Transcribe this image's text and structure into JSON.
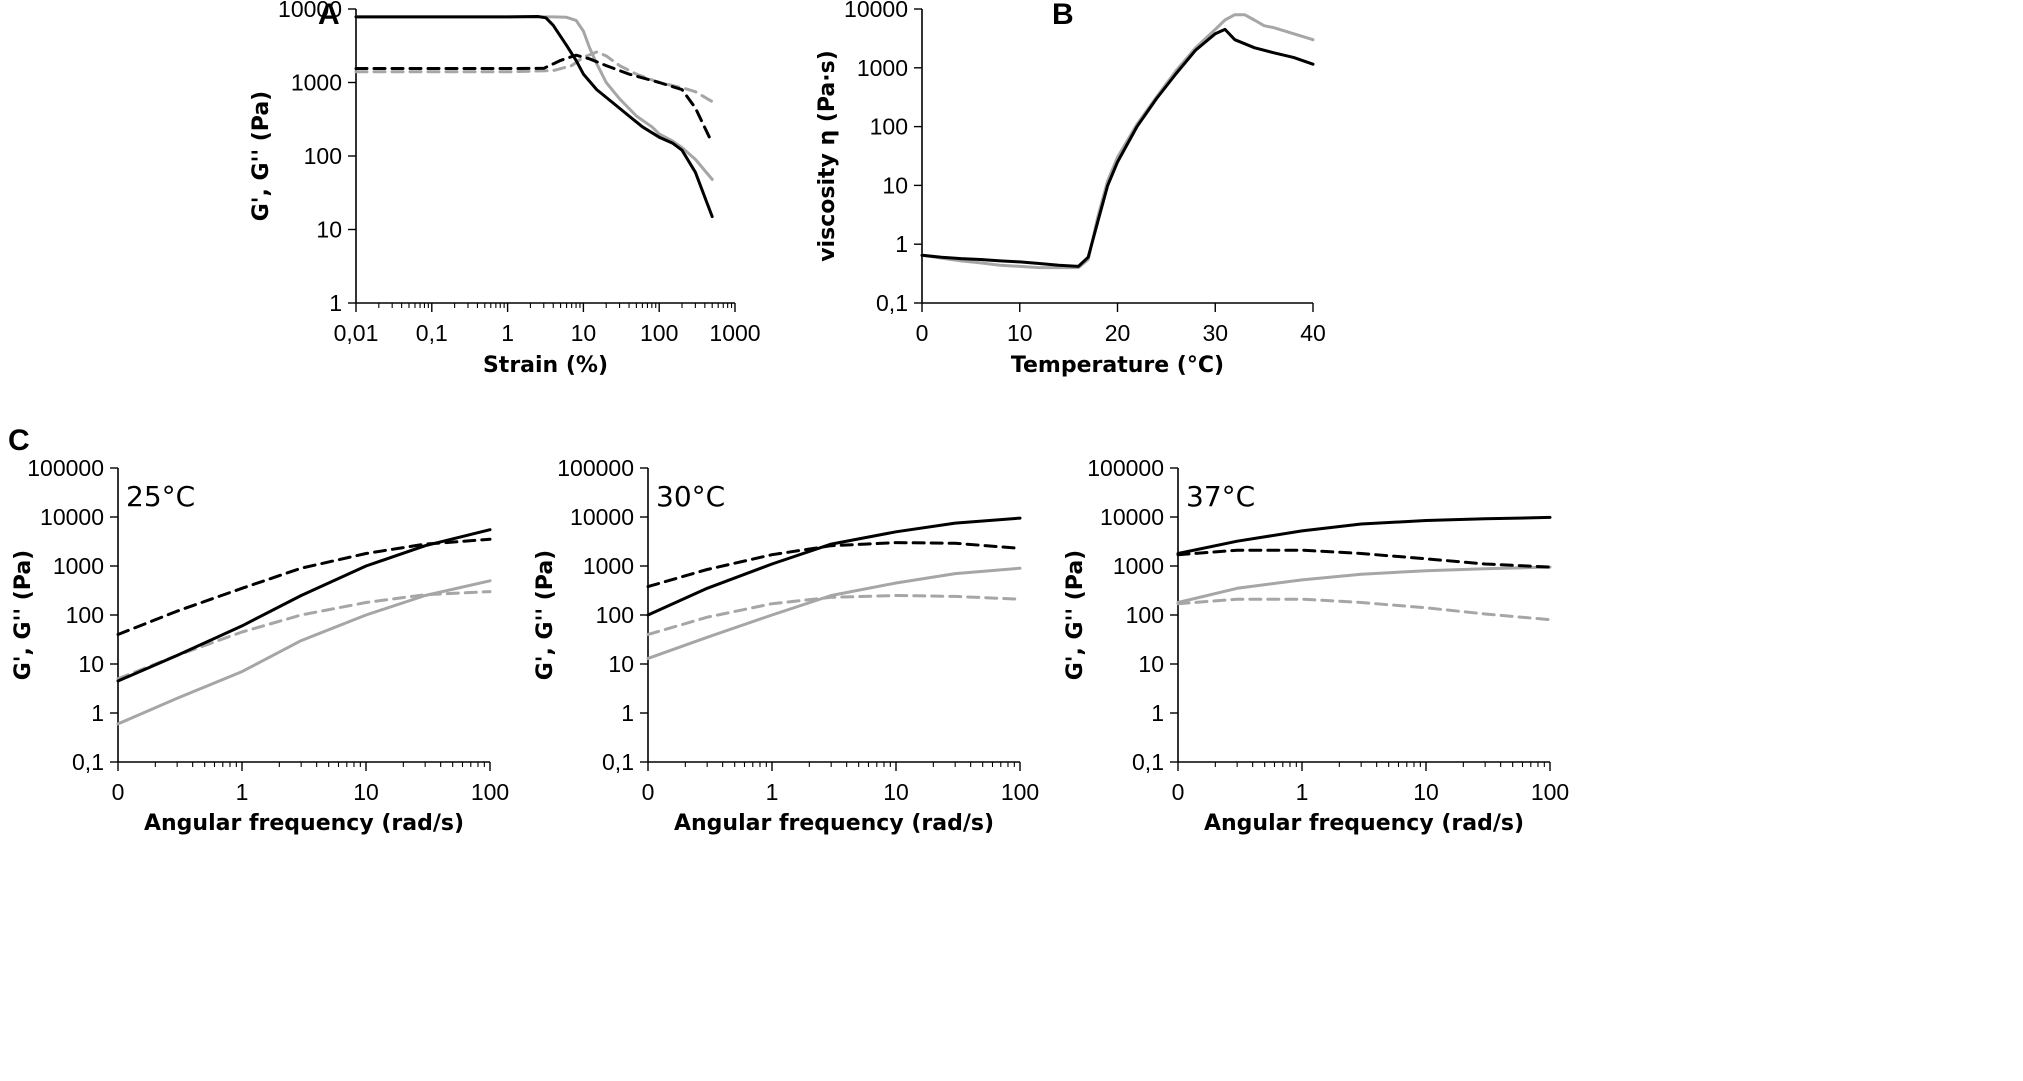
{
  "colors": {
    "black": "#000000",
    "gray": "#a6a6a6"
  },
  "chart_data": [
    {
      "panel": "A",
      "type": "line",
      "title": "",
      "xlabel": "Strain (%)",
      "ylabel": "G', G'' (Pa)",
      "xscale": "log",
      "yscale": "log",
      "xlim": [
        0.01,
        1000
      ],
      "ylim": [
        1,
        10000
      ],
      "xticks": [
        "0,01",
        "0,1",
        "1",
        "10",
        "100",
        "1000"
      ],
      "yticks": [
        "1",
        "10",
        "100",
        "1000",
        "10000"
      ],
      "series": [
        {
          "name": "G' (black solid)",
          "color": "black",
          "dash": false,
          "x": [
            0.01,
            1,
            2.5,
            3.2,
            4,
            6,
            8,
            10,
            15,
            25,
            40,
            60,
            100,
            150,
            200,
            300,
            500
          ],
          "y": [
            7800,
            7800,
            7900,
            7600,
            6000,
            3200,
            2000,
            1300,
            800,
            520,
            350,
            250,
            180,
            150,
            120,
            60,
            15
          ]
        },
        {
          "name": "G' (gray solid)",
          "color": "gray",
          "dash": false,
          "x": [
            0.01,
            1,
            4,
            6,
            8,
            10,
            12,
            15,
            20,
            30,
            50,
            80,
            100,
            150,
            200,
            300,
            500
          ],
          "y": [
            7800,
            7800,
            7800,
            7700,
            7000,
            5000,
            3000,
            1800,
            1000,
            600,
            350,
            250,
            200,
            160,
            130,
            90,
            48
          ]
        },
        {
          "name": "G'' (black dashed)",
          "color": "black",
          "dash": true,
          "x": [
            0.01,
            1,
            3,
            5,
            8,
            12,
            20,
            40,
            100,
            200,
            300,
            500
          ],
          "y": [
            1550,
            1550,
            1560,
            2000,
            2350,
            2100,
            1700,
            1300,
            1000,
            800,
            450,
            150
          ]
        },
        {
          "name": "G'' (gray dashed)",
          "color": "gray",
          "dash": true,
          "x": [
            0.01,
            1,
            4,
            7,
            10,
            15,
            20,
            30,
            50,
            100,
            200,
            300,
            500
          ],
          "y": [
            1400,
            1400,
            1450,
            1700,
            2200,
            2600,
            2300,
            1700,
            1300,
            1000,
            850,
            750,
            550
          ]
        }
      ]
    },
    {
      "panel": "B",
      "type": "line",
      "title": "",
      "xlabel": "Temperature (°C)",
      "ylabel": "viscosity η (Pa·s)",
      "xscale": "linear",
      "yscale": "log",
      "xlim": [
        0,
        40
      ],
      "ylim": [
        0.1,
        10000
      ],
      "xticks": [
        "0",
        "10",
        "20",
        "30",
        "40"
      ],
      "yticks": [
        "0,1",
        "1",
        "10",
        "100",
        "1000",
        "10000"
      ],
      "series": [
        {
          "name": "black",
          "color": "black",
          "dash": false,
          "x": [
            0,
            2,
            4,
            6,
            8,
            10,
            12,
            14,
            16,
            17,
            18,
            19,
            20,
            22,
            24,
            26,
            28,
            30,
            31,
            32,
            34,
            36,
            38,
            40
          ],
          "y": [
            0.65,
            0.6,
            0.57,
            0.55,
            0.52,
            0.5,
            0.47,
            0.44,
            0.42,
            0.6,
            2.5,
            10,
            25,
            100,
            300,
            800,
            2000,
            3800,
            4500,
            3000,
            2200,
            1800,
            1500,
            1150
          ]
        },
        {
          "name": "gray",
          "color": "gray",
          "dash": false,
          "x": [
            0,
            2,
            4,
            6,
            8,
            10,
            12,
            14,
            16,
            17,
            18,
            19,
            20,
            22,
            24,
            26,
            28,
            30,
            31,
            32,
            33,
            34,
            35,
            36,
            38,
            40
          ],
          "y": [
            0.65,
            0.58,
            0.52,
            0.48,
            0.44,
            0.42,
            0.4,
            0.4,
            0.4,
            0.55,
            3,
            12,
            30,
            110,
            320,
            900,
            2200,
            4500,
            6500,
            8000,
            8000,
            6500,
            5200,
            4800,
            3800,
            3000
          ]
        }
      ]
    },
    {
      "panel": "C1",
      "type": "line",
      "title": "25°C",
      "xlabel": "Angular frequency (rad/s)",
      "ylabel": "G', G'' (Pa)",
      "xscale": "log",
      "yscale": "log",
      "xlim": [
        0.1,
        100
      ],
      "ylim": [
        0.1,
        100000
      ],
      "xticks": [
        "0",
        "1",
        "10",
        "100"
      ],
      "yticks": [
        "0,1",
        "1",
        "10",
        "100",
        "1000",
        "10000",
        "100000"
      ],
      "series": [
        {
          "name": "G' (black solid)",
          "color": "black",
          "dash": false,
          "x": [
            0.1,
            0.3,
            1,
            3,
            10,
            30,
            100
          ],
          "y": [
            4.5,
            15,
            60,
            250,
            1000,
            2600,
            5500
          ]
        },
        {
          "name": "G'' (black dashed)",
          "color": "black",
          "dash": true,
          "x": [
            0.1,
            0.3,
            1,
            3,
            10,
            30,
            100
          ],
          "y": [
            40,
            120,
            350,
            900,
            1800,
            2800,
            3500
          ]
        },
        {
          "name": "G' (gray solid)",
          "color": "gray",
          "dash": false,
          "x": [
            0.1,
            0.3,
            1,
            3,
            10,
            30,
            100
          ],
          "y": [
            0.6,
            2,
            7,
            30,
            100,
            250,
            500
          ]
        },
        {
          "name": "G'' (gray dashed)",
          "color": "gray",
          "dash": true,
          "x": [
            0.1,
            0.3,
            1,
            3,
            10,
            30,
            100
          ],
          "y": [
            5,
            15,
            45,
            100,
            180,
            260,
            300
          ]
        }
      ]
    },
    {
      "panel": "C2",
      "type": "line",
      "title": "30°C",
      "xlabel": "Angular frequency (rad/s)",
      "ylabel": "G', G'' (Pa)",
      "xscale": "log",
      "yscale": "log",
      "xlim": [
        0.1,
        100
      ],
      "ylim": [
        0.1,
        100000
      ],
      "xticks": [
        "0",
        "1",
        "10",
        "100"
      ],
      "yticks": [
        "0,1",
        "1",
        "10",
        "100",
        "1000",
        "10000",
        "100000"
      ],
      "series": [
        {
          "name": "G' (black solid)",
          "color": "black",
          "dash": false,
          "x": [
            0.1,
            0.3,
            1,
            3,
            10,
            30,
            100
          ],
          "y": [
            100,
            350,
            1100,
            2800,
            5000,
            7500,
            9500
          ]
        },
        {
          "name": "G'' (black dashed)",
          "color": "black",
          "dash": true,
          "x": [
            0.1,
            0.3,
            1,
            3,
            10,
            30,
            100
          ],
          "y": [
            380,
            850,
            1700,
            2600,
            3000,
            2900,
            2300
          ]
        },
        {
          "name": "G' (gray solid)",
          "color": "gray",
          "dash": false,
          "x": [
            0.1,
            0.3,
            1,
            3,
            10,
            30,
            100
          ],
          "y": [
            13,
            35,
            100,
            250,
            450,
            700,
            900
          ]
        },
        {
          "name": "G'' (gray dashed)",
          "color": "gray",
          "dash": true,
          "x": [
            0.1,
            0.3,
            1,
            3,
            10,
            30,
            100
          ],
          "y": [
            40,
            90,
            170,
            230,
            250,
            240,
            210
          ]
        }
      ]
    },
    {
      "panel": "C3",
      "type": "line",
      "title": "37°C",
      "xlabel": "Angular frequency (rad/s)",
      "ylabel": "G', G'' (Pa)",
      "xscale": "log",
      "yscale": "log",
      "xlim": [
        0.1,
        100
      ],
      "ylim": [
        0.1,
        100000
      ],
      "xticks": [
        "0",
        "1",
        "10",
        "100"
      ],
      "yticks": [
        "0,1",
        "1",
        "10",
        "100",
        "1000",
        "10000",
        "100000"
      ],
      "series": [
        {
          "name": "G' (black solid)",
          "color": "black",
          "dash": false,
          "x": [
            0.1,
            0.3,
            1,
            3,
            10,
            30,
            100
          ],
          "y": [
            1800,
            3200,
            5200,
            7200,
            8500,
            9200,
            9800
          ]
        },
        {
          "name": "G'' (black dashed)",
          "color": "black",
          "dash": true,
          "x": [
            0.1,
            0.3,
            1,
            3,
            10,
            30,
            100
          ],
          "y": [
            1700,
            2100,
            2100,
            1800,
            1400,
            1100,
            950
          ]
        },
        {
          "name": "G' (gray solid)",
          "color": "gray",
          "dash": false,
          "x": [
            0.1,
            0.3,
            1,
            3,
            10,
            30,
            100
          ],
          "y": [
            180,
            350,
            520,
            680,
            800,
            880,
            950
          ]
        },
        {
          "name": "G'' (gray dashed)",
          "color": "gray",
          "dash": true,
          "x": [
            0.1,
            0.3,
            1,
            3,
            10,
            30,
            100
          ],
          "y": [
            170,
            210,
            210,
            180,
            140,
            105,
            80
          ]
        }
      ]
    }
  ]
}
